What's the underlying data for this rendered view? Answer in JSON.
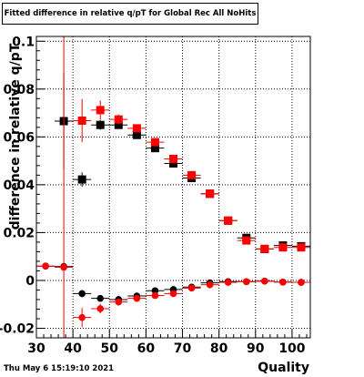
{
  "chart_data": {
    "type": "scatter",
    "title": "Fitted difference in relative q/pT for Global Rec All NoHits",
    "xlabel": "Quality",
    "ylabel": "difference in relative q/pT",
    "xlim": [
      30,
      105
    ],
    "ylim": [
      -0.024,
      0.102
    ],
    "xticks": [
      30,
      40,
      50,
      60,
      70,
      80,
      90,
      100
    ],
    "yticks": [
      -0.02,
      0,
      0.02,
      0.04,
      0.06,
      0.08,
      0.1
    ],
    "ytick_labels": [
      "-0.02",
      "0",
      "0.02",
      "0.04",
      "0.06",
      "0.08",
      "0.1"
    ],
    "grid": true,
    "legend": "none",
    "series": [
      {
        "color": "#000000",
        "marker": "square",
        "x": [
          37.5,
          42.5,
          47.5,
          52.5,
          57.5,
          62.5,
          67.5,
          72.5,
          77.5,
          82.5,
          87.5,
          92.5,
          97.5,
          102.5
        ],
        "y": [
          0.0666,
          0.0422,
          0.065,
          0.065,
          0.0608,
          0.0553,
          0.0489,
          0.0428,
          0.0362,
          0.025,
          0.0178,
          0.0131,
          0.0146,
          0.0143
        ],
        "yerr": [
          0.02,
          0.003,
          0.002,
          0.0015,
          0.0012,
          0.001,
          0.001,
          0.001,
          0.001,
          0.0008,
          0.0008,
          0.0008,
          0.0008,
          0.0008
        ]
      },
      {
        "color": "#ff0000",
        "marker": "square",
        "x": [
          42.5,
          47.5,
          52.5,
          57.5,
          62.5,
          67.5,
          72.5,
          77.5,
          82.5,
          87.5,
          92.5,
          97.5,
          102.5
        ],
        "y": [
          0.0668,
          0.0712,
          0.0673,
          0.0636,
          0.0578,
          0.0508,
          0.044,
          0.0363,
          0.025,
          0.0167,
          0.0132,
          0.0138,
          0.0138
        ],
        "yerr": [
          0.009,
          0.004,
          0.002,
          0.0015,
          0.0012,
          0.001,
          0.001,
          0.001,
          0.0008,
          0.0008,
          0.0008,
          0.0008,
          0.0008
        ]
      },
      {
        "color": "#000000",
        "marker": "circle",
        "x": [
          32.5,
          37.5,
          42.5,
          47.5,
          52.5,
          57.5,
          62.5,
          67.5,
          72.5,
          77.5,
          82.5,
          87.5,
          92.5,
          97.5,
          102.5
        ],
        "y": [
          0.006,
          0.0058,
          -0.0055,
          -0.0075,
          -0.008,
          -0.0065,
          -0.0043,
          -0.0038,
          -0.0028,
          -0.001,
          -0.0005,
          -0.0005,
          -0.0003,
          -0.0007,
          -0.0008
        ],
        "yerr": [
          0,
          0,
          0.0015,
          0.001,
          0.001,
          0.0008,
          0.0008,
          0.0008,
          0.0008,
          0.0006,
          0.0005,
          0.0005,
          0.0005,
          0.0005,
          0.0005
        ]
      },
      {
        "color": "#ff0000",
        "marker": "circle",
        "x": [
          32.5,
          37.5,
          42.5,
          47.5,
          52.5,
          57.5,
          62.5,
          67.5,
          72.5,
          77.5,
          82.5,
          87.5,
          92.5,
          97.5,
          102.5
        ],
        "y": [
          0.006,
          0.0055,
          -0.0155,
          -0.0118,
          -0.009,
          -0.0075,
          -0.0063,
          -0.0055,
          -0.0032,
          -0.0018,
          -0.0008,
          -0.0005,
          -0.0003,
          -0.0007,
          -0.0008
        ],
        "yerr": [
          0,
          0.115,
          0.004,
          0.002,
          0.0015,
          0.001,
          0.0008,
          0.0008,
          0.0008,
          0.0006,
          0.0005,
          0.0005,
          0.0005,
          0.0005,
          0.0005
        ]
      }
    ]
  },
  "footer": {
    "timestamp": "Thu May  6 15:19:10 2021"
  }
}
